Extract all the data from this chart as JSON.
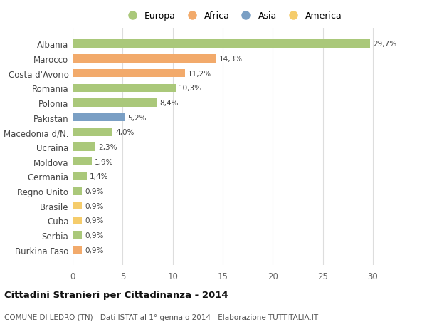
{
  "categories": [
    "Burkina Faso",
    "Serbia",
    "Cuba",
    "Brasile",
    "Regno Unito",
    "Germania",
    "Moldova",
    "Ucraina",
    "Macedonia d/N.",
    "Pakistan",
    "Polonia",
    "Romania",
    "Costa d'Avorio",
    "Marocco",
    "Albania"
  ],
  "values": [
    0.9,
    0.9,
    0.9,
    0.9,
    0.9,
    1.4,
    1.9,
    2.3,
    4.0,
    5.2,
    8.4,
    10.3,
    11.2,
    14.3,
    29.7
  ],
  "labels": [
    "0,9%",
    "0,9%",
    "0,9%",
    "0,9%",
    "0,9%",
    "1,4%",
    "1,9%",
    "2,3%",
    "4,0%",
    "5,2%",
    "8,4%",
    "10,3%",
    "11,2%",
    "14,3%",
    "29,7%"
  ],
  "colors": [
    "#f2aa6b",
    "#aac87a",
    "#f5cc6b",
    "#f5cc6b",
    "#aac87a",
    "#aac87a",
    "#aac87a",
    "#aac87a",
    "#aac87a",
    "#7a9fc4",
    "#aac87a",
    "#aac87a",
    "#f2aa6b",
    "#f2aa6b",
    "#aac87a"
  ],
  "legend_labels": [
    "Europa",
    "Africa",
    "Asia",
    "America"
  ],
  "legend_colors": [
    "#aac87a",
    "#f2aa6b",
    "#7a9fc4",
    "#f5cc6b"
  ],
  "title": "Cittadini Stranieri per Cittadinanza - 2014",
  "subtitle": "COMUNE DI LEDRO (TN) - Dati ISTAT al 1° gennaio 2014 - Elaborazione TUTTITALIA.IT",
  "xlim": [
    0,
    32
  ],
  "bg_color": "#ffffff",
  "grid_color": "#dddddd",
  "bar_height": 0.55
}
